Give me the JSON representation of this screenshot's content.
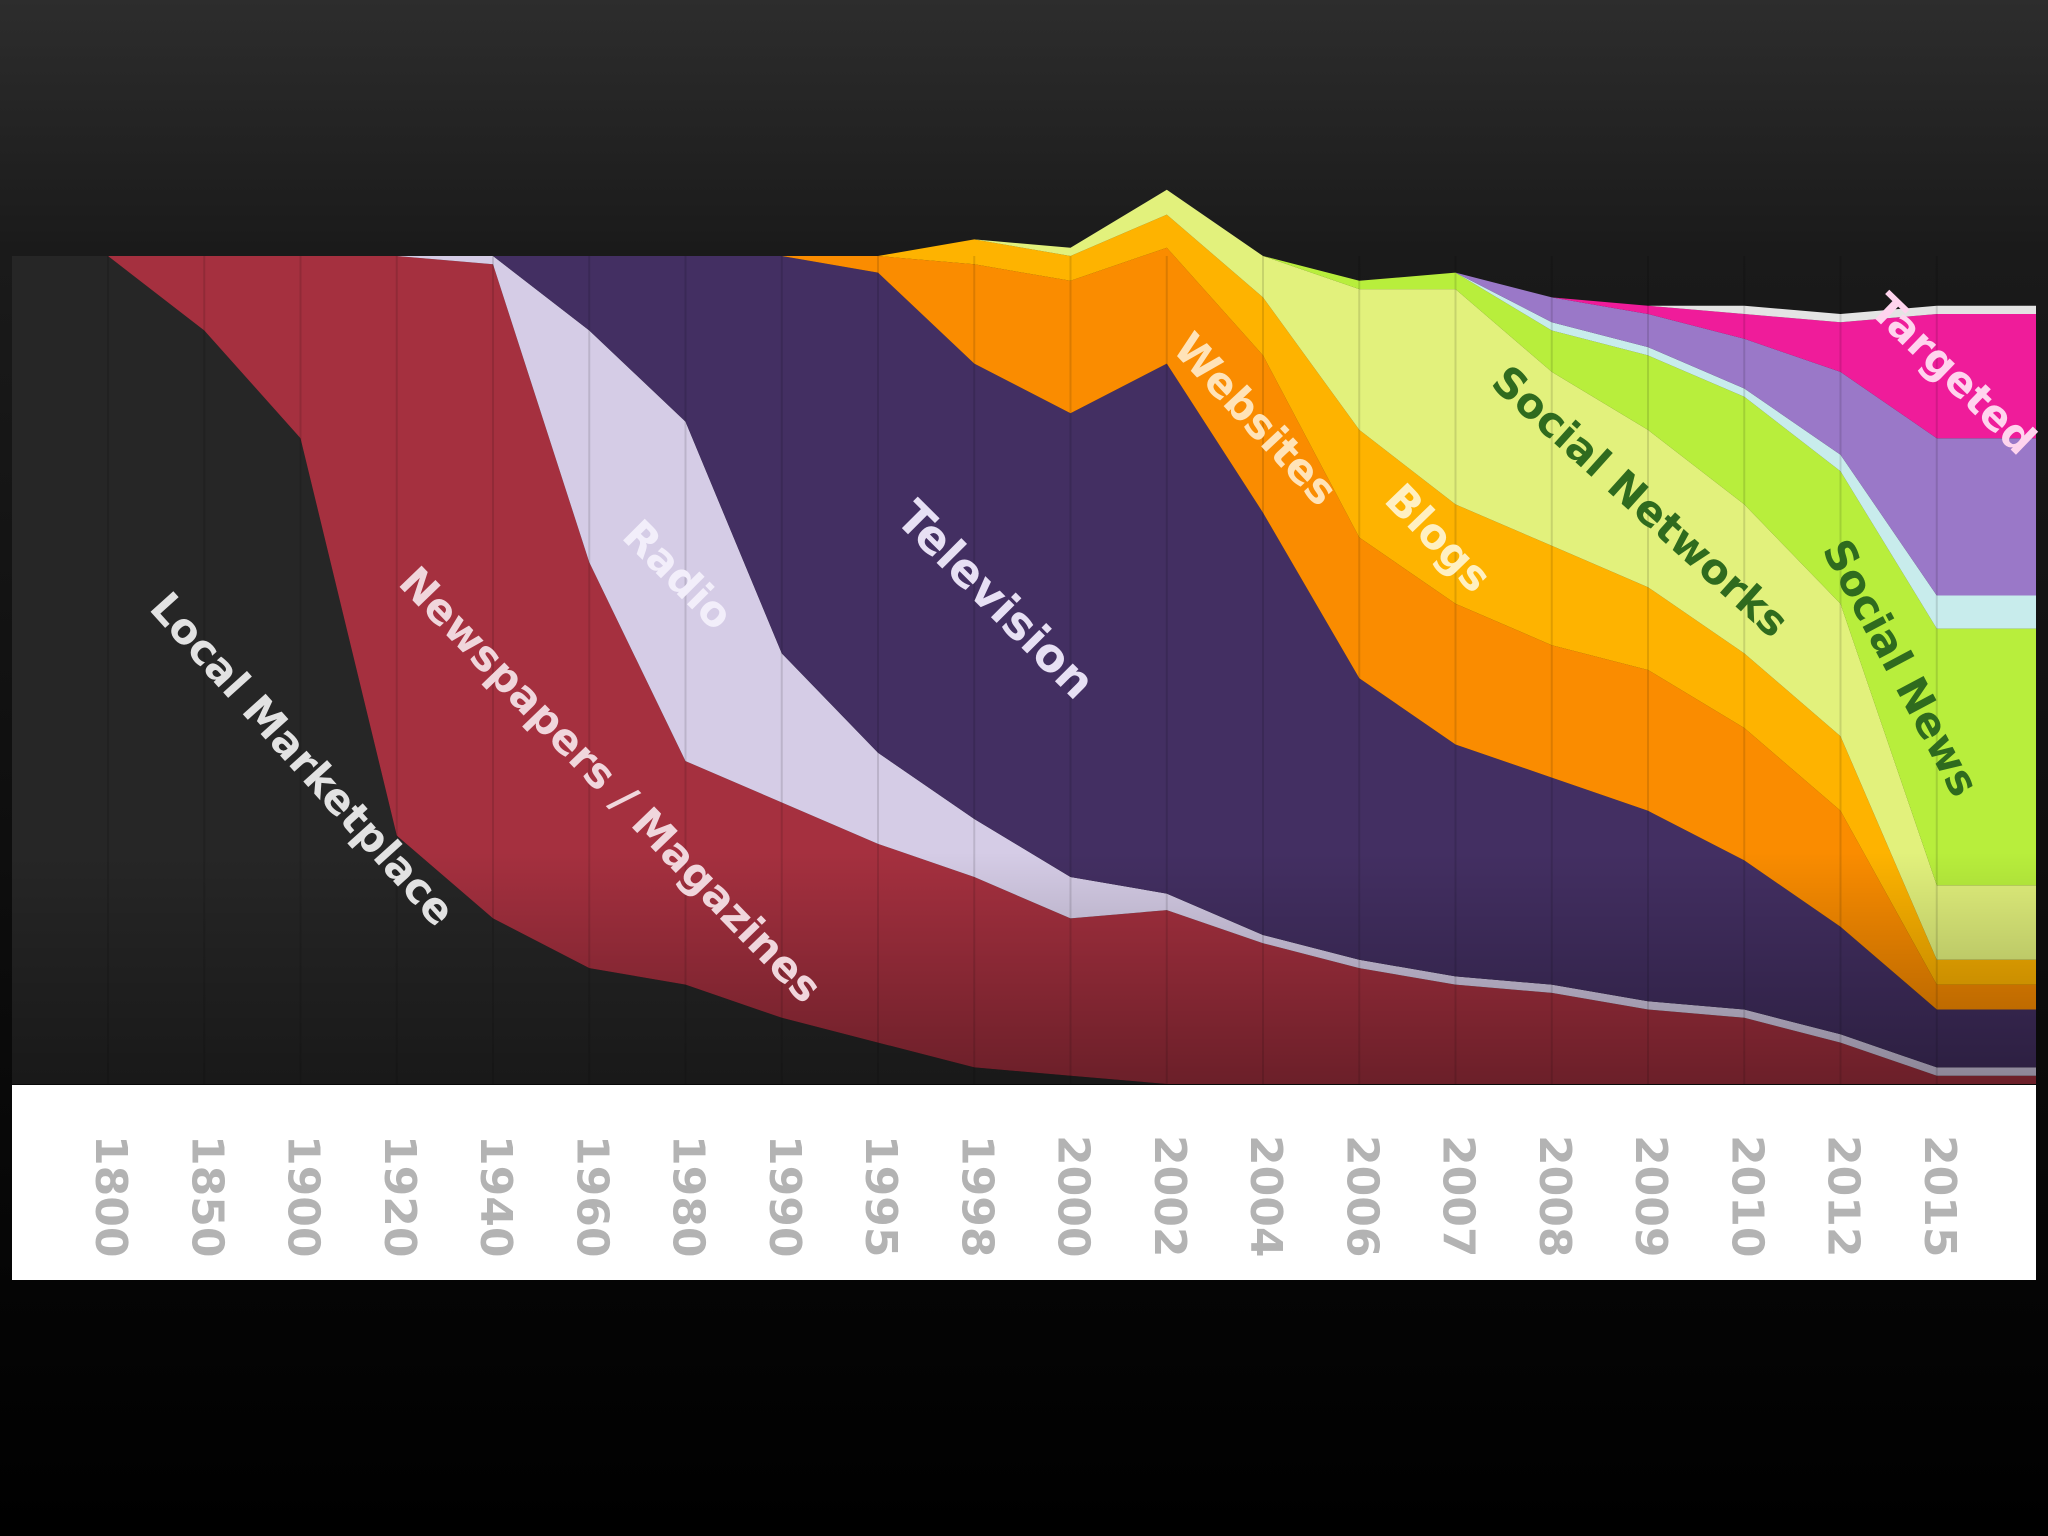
{
  "chart_data": {
    "type": "area",
    "stacked": true,
    "normalized": true,
    "x": [
      "1800",
      "1850",
      "1900",
      "1920",
      "1940",
      "1960",
      "1980",
      "1990",
      "1995",
      "1998",
      "2000",
      "2002",
      "2004",
      "2006",
      "2007",
      "2008",
      "2009",
      "2010",
      "2012",
      "2015"
    ],
    "ylim": [
      0,
      100
    ],
    "grid": "vertical",
    "legend": "none",
    "series": [
      {
        "name": "Local Marketplace",
        "color": "#262626",
        "label_color": "#e2e2e2",
        "values": [
          100,
          91,
          78,
          30,
          20,
          14,
          12,
          8,
          5,
          2,
          1,
          0,
          0,
          0,
          0,
          0,
          0,
          0,
          0,
          0
        ]
      },
      {
        "name": "Newspapers / Magazines",
        "color": "#a5303f",
        "label_color": "#f0d6dc",
        "values": [
          0,
          9,
          22,
          70,
          79,
          49,
          27,
          26,
          24,
          23,
          19,
          21,
          17,
          14,
          12,
          11,
          9,
          8,
          5,
          1
        ]
      },
      {
        "name": "Radio",
        "color": "#d5cce6",
        "label_color": "#f2eefa",
        "values": [
          0,
          0,
          0,
          0,
          1,
          28,
          41,
          18,
          11,
          7,
          5,
          2,
          1,
          1,
          1,
          1,
          1,
          1,
          1,
          1
        ]
      },
      {
        "name": "Television",
        "color": "#432f62",
        "label_color": "#e7e0f4",
        "values": [
          0,
          0,
          0,
          0,
          0,
          9,
          20,
          48,
          58,
          55,
          56,
          64,
          51,
          34,
          28,
          25,
          23,
          18,
          13,
          7
        ]
      },
      {
        "name": "Websites",
        "color": "#fa8c00",
        "label_color": "#ffe3b8",
        "values": [
          0,
          0,
          0,
          0,
          0,
          0,
          0,
          0,
          2,
          12,
          16,
          14,
          19,
          17,
          17,
          16,
          17,
          16,
          14,
          3
        ]
      },
      {
        "name": "Blogs",
        "color": "#feb300",
        "label_color": "#fff0c2",
        "values": [
          0,
          0,
          0,
          0,
          0,
          0,
          0,
          0,
          0,
          3,
          3,
          4,
          7,
          13,
          12,
          12,
          10,
          9,
          9,
          3
        ]
      },
      {
        "name": "Social Networks",
        "color": "#e2f17c",
        "label_color": "#2f6b1e",
        "values": [
          0,
          0,
          0,
          0,
          0,
          0,
          0,
          0,
          0,
          0,
          1,
          3,
          5,
          17,
          26,
          21,
          19,
          18,
          16,
          9
        ]
      },
      {
        "name": "Social News",
        "color": "#b8ee3c",
        "label_color": "#2f6b1e",
        "values": [
          0,
          0,
          0,
          0,
          0,
          0,
          0,
          0,
          0,
          0,
          0,
          0,
          0,
          1,
          2,
          5,
          9,
          13,
          16,
          31
        ]
      },
      {
        "name": "",
        "color": "#c8ecec",
        "label_color": "",
        "values": [
          0,
          0,
          0,
          0,
          0,
          0,
          0,
          0,
          0,
          0,
          0,
          0,
          0,
          0,
          0,
          1,
          1,
          1,
          2,
          4
        ]
      },
      {
        "name": "",
        "color": "#9a78c8",
        "label_color": "",
        "values": [
          0,
          0,
          0,
          0,
          0,
          0,
          0,
          0,
          0,
          0,
          0,
          0,
          0,
          0,
          0,
          3,
          4,
          6,
          10,
          19
        ]
      },
      {
        "name": "Targeted",
        "color": "#ef1c9a",
        "label_color": "#ffd4ee",
        "values": [
          0,
          0,
          0,
          0,
          0,
          0,
          0,
          0,
          0,
          0,
          0,
          0,
          0,
          0,
          0,
          0,
          1,
          3,
          6,
          15
        ]
      },
      {
        "name": "",
        "color": "#e4e4e4",
        "label_color": "",
        "values": [
          0,
          0,
          0,
          0,
          0,
          0,
          0,
          0,
          0,
          0,
          0,
          0,
          0,
          0,
          0,
          0,
          0,
          1,
          1,
          1
        ]
      }
    ]
  }
}
